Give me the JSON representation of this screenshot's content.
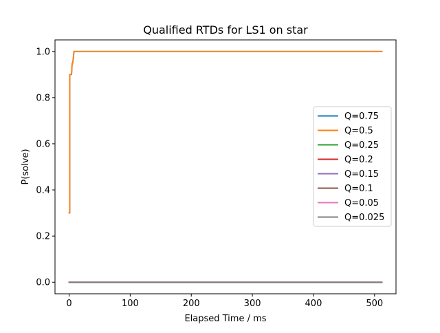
{
  "chart_data": {
    "type": "line",
    "title": "Qualified RTDs for LS1 on star",
    "xlabel": "Elapsed Time / ms",
    "ylabel": "P(solve)",
    "xlim": [
      -23.1,
      535.1
    ],
    "ylim": [
      -0.05,
      1.05
    ],
    "xticks": [
      0,
      100,
      200,
      300,
      400,
      500
    ],
    "yticks": [
      0.0,
      0.2,
      0.4,
      0.6,
      0.8,
      1.0
    ],
    "xtick_labels": [
      "0",
      "100",
      "200",
      "300",
      "400",
      "500"
    ],
    "ytick_labels": [
      "0.0",
      "0.2",
      "0.4",
      "0.6",
      "0.8",
      "1.0"
    ],
    "grid": false,
    "legend_position": "center-right",
    "series": [
      {
        "name": "Q=0.75",
        "color": "#1f77b4",
        "x": [
          0,
          1,
          1,
          4,
          5,
          6,
          8,
          512
        ],
        "y": [
          0.3,
          0.3,
          0.9,
          0.9,
          0.95,
          0.95,
          1.0,
          1.0
        ]
      },
      {
        "name": "Q=0.5",
        "color": "#ff7f0e",
        "x": [
          0,
          1,
          1,
          4,
          5,
          6,
          8,
          512
        ],
        "y": [
          0.3,
          0.3,
          0.9,
          0.9,
          0.95,
          0.95,
          1.0,
          1.0
        ]
      },
      {
        "name": "Q=0.25",
        "color": "#2ca02c",
        "x": [
          0,
          512
        ],
        "y": [
          0.0,
          0.0
        ]
      },
      {
        "name": "Q=0.2",
        "color": "#d62728",
        "x": [
          0,
          512
        ],
        "y": [
          0.0,
          0.0
        ]
      },
      {
        "name": "Q=0.15",
        "color": "#9467bd",
        "x": [
          0,
          512
        ],
        "y": [
          0.0,
          0.0
        ]
      },
      {
        "name": "Q=0.1",
        "color": "#8c564b",
        "x": [
          0,
          512
        ],
        "y": [
          0.0,
          0.0
        ]
      },
      {
        "name": "Q=0.05",
        "color": "#e377c2",
        "x": [
          0,
          512
        ],
        "y": [
          0.0,
          0.0
        ]
      },
      {
        "name": "Q=0.025",
        "color": "#7f7f7f",
        "x": [
          0,
          512
        ],
        "y": [
          0.0,
          0.0
        ]
      }
    ]
  }
}
